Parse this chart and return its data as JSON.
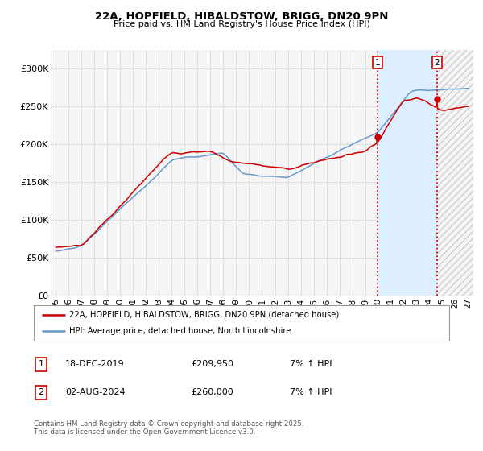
{
  "title": "22A, HOPFIELD, HIBALDSTOW, BRIGG, DN20 9PN",
  "subtitle": "Price paid vs. HM Land Registry's House Price Index (HPI)",
  "ylim": [
    0,
    325000
  ],
  "xlim_start": 1994.6,
  "xlim_end": 2027.4,
  "yticks": [
    0,
    50000,
    100000,
    150000,
    200000,
    250000,
    300000
  ],
  "ytick_labels": [
    "£0",
    "£50K",
    "£100K",
    "£150K",
    "£200K",
    "£250K",
    "£300K"
  ],
  "xticks": [
    1995,
    1996,
    1997,
    1998,
    1999,
    2000,
    2001,
    2002,
    2003,
    2004,
    2005,
    2006,
    2007,
    2008,
    2009,
    2010,
    2011,
    2012,
    2013,
    2014,
    2015,
    2016,
    2017,
    2018,
    2019,
    2020,
    2021,
    2022,
    2023,
    2024,
    2025,
    2026,
    2027
  ],
  "xtick_labels": [
    "95",
    "96",
    "97",
    "98",
    "99",
    "00",
    "01",
    "02",
    "03",
    "04",
    "05",
    "06",
    "07",
    "08",
    "09",
    "10",
    "11",
    "12",
    "13",
    "14",
    "15",
    "16",
    "17",
    "18",
    "19",
    "20",
    "21",
    "22",
    "23",
    "24",
    "25",
    "26",
    "27"
  ],
  "background_color": "#ffffff",
  "plot_bg_color": "#f5f5f5",
  "grid_color": "#dddddd",
  "line1_color": "#cc0000",
  "line2_color": "#6699cc",
  "vline1_x": 2019.96,
  "vline2_x": 2024.58,
  "vline_color": "#cc0000",
  "marker1_x": 2019.96,
  "marker1_y": 209950,
  "marker2_x": 2024.58,
  "marker2_y": 260000,
  "legend_label1": "22A, HOPFIELD, HIBALDSTOW, BRIGG, DN20 9PN (detached house)",
  "legend_label2": "HPI: Average price, detached house, North Lincolnshire",
  "annot1_label": "1",
  "annot2_label": "2",
  "annot1_date": "18-DEC-2019",
  "annot1_price": "£209,950",
  "annot1_hpi": "7% ↑ HPI",
  "annot2_date": "02-AUG-2024",
  "annot2_price": "£260,000",
  "annot2_hpi": "7% ↑ HPI",
  "copyright_text": "Contains HM Land Registry data © Crown copyright and database right 2025.\nThis data is licensed under the Open Government Licence v3.0.",
  "shaded1_start": 2019.96,
  "shaded1_end": 2024.58,
  "shaded1_color": "#ddeeff",
  "shaded2_start": 2024.58,
  "shaded2_end": 2027.4
}
